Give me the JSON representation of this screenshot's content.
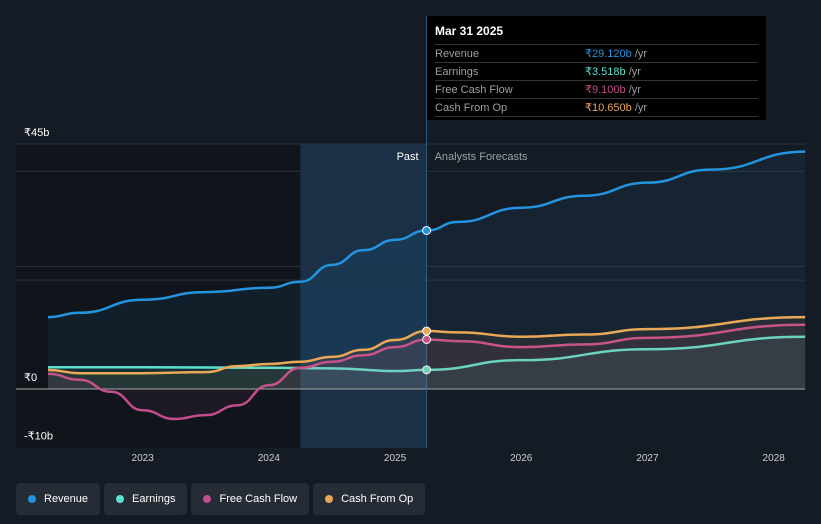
{
  "chart_data": {
    "type": "line",
    "title": "",
    "ylim": [
      -10,
      45
    ],
    "xlim": [
      2022.25,
      2028.25
    ],
    "y_tick_labels": [
      "₹45b",
      "₹0",
      "-₹10b"
    ],
    "y_ticks": [
      45,
      0,
      -10
    ],
    "x_tick_labels": [
      "2023",
      "2024",
      "2025",
      "2026",
      "2027",
      "2028"
    ],
    "x_ticks": [
      2023,
      2024,
      2025,
      2026,
      2027,
      2028
    ],
    "past_label": "Past",
    "forecast_label": "Analysts Forecasts",
    "divider_x": 2025.25,
    "highlight_start": 2024.25,
    "series": [
      {
        "name": "Revenue",
        "color": "#2394df",
        "x": [
          2022.25,
          2022.5,
          2023,
          2023.5,
          2024,
          2024.25,
          2024.5,
          2024.75,
          2025,
          2025.25,
          2025.5,
          2026,
          2026.5,
          2027,
          2027.5,
          2028.25
        ],
        "values": [
          13.2,
          14,
          16.4,
          17.8,
          18.6,
          19.7,
          22.8,
          25.5,
          27.4,
          29.12,
          30.7,
          33.3,
          35.5,
          37.9,
          40.3,
          43.6
        ]
      },
      {
        "name": "Earnings",
        "color": "#5ce1cf",
        "x": [
          2022.25,
          2023,
          2024,
          2024.5,
          2025,
          2025.25,
          2026,
          2027,
          2028.25
        ],
        "values": [
          4.0,
          4.0,
          3.9,
          3.8,
          3.3,
          3.518,
          5.3,
          7.3,
          9.6
        ]
      },
      {
        "name": "Free Cash Flow",
        "color": "#c54d8d",
        "x": [
          2022.25,
          2022.5,
          2022.75,
          2023,
          2023.25,
          2023.5,
          2023.75,
          2024,
          2024.25,
          2024.5,
          2024.75,
          2025,
          2025.25,
          2025.5,
          2026,
          2026.5,
          2027,
          2028.25
        ],
        "values": [
          2.8,
          1.7,
          -0.5,
          -3.9,
          -5.5,
          -4.8,
          -3,
          0.7,
          3.9,
          5,
          6.2,
          7.7,
          9.1,
          8.8,
          7.7,
          8.2,
          9.4,
          11.8
        ]
      },
      {
        "name": "Cash From Op",
        "color": "#e8a857",
        "x": [
          2022.25,
          2022.5,
          2023,
          2023.5,
          2023.75,
          2024,
          2024.25,
          2024.5,
          2024.75,
          2025,
          2025.25,
          2025.5,
          2026,
          2026.5,
          2027,
          2028.25
        ],
        "values": [
          3.5,
          2.9,
          2.9,
          3.1,
          4.2,
          4.6,
          5,
          5.9,
          7.2,
          9,
          10.65,
          10.4,
          9.6,
          10,
          11,
          13.2
        ]
      }
    ]
  },
  "tooltip": {
    "date": "Mar 31 2025",
    "rows": [
      {
        "label": "Revenue",
        "value": "₹29.120b",
        "unit": "/yr",
        "color": "#2394df"
      },
      {
        "label": "Earnings",
        "value": "₹3.518b",
        "unit": "/yr",
        "color": "#5ce1cf"
      },
      {
        "label": "Free Cash Flow",
        "value": "₹9.100b",
        "unit": "/yr",
        "color": "#c54d8d"
      },
      {
        "label": "Cash From Op",
        "value": "₹10.650b",
        "unit": "/yr",
        "color": "#e8a857"
      }
    ]
  },
  "legend": [
    {
      "label": "Revenue",
      "color": "#2394df"
    },
    {
      "label": "Earnings",
      "color": "#5ce1cf"
    },
    {
      "label": "Free Cash Flow",
      "color": "#c54d8d"
    },
    {
      "label": "Cash From Op",
      "color": "#e8a857"
    }
  ]
}
